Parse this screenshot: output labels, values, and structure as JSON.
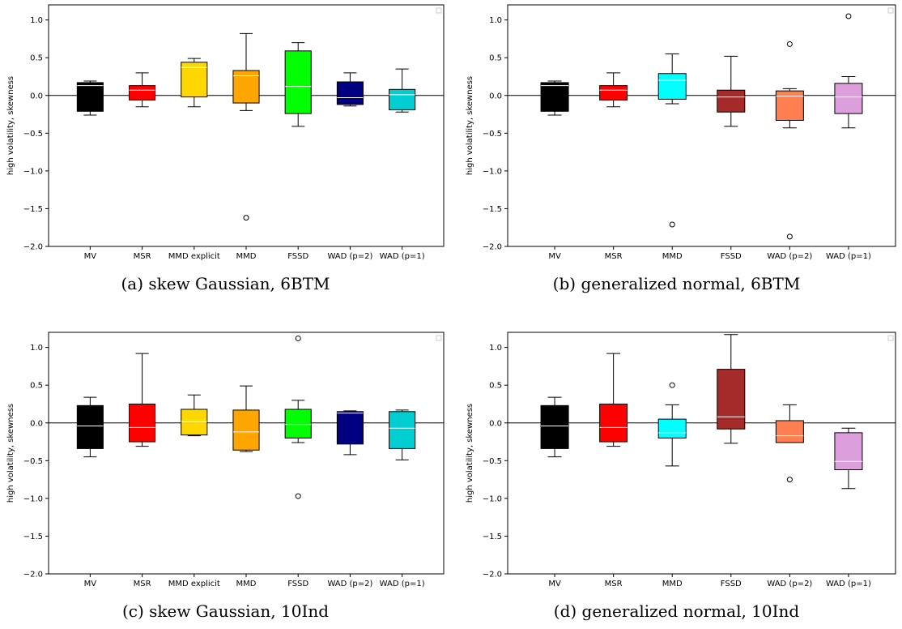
{
  "chart_data": [
    {
      "type": "box",
      "caption": "(a) skew Gaussian, 6BTM",
      "ylabel": "high volatility, skewness",
      "ylim": [
        -2.0,
        1.2
      ],
      "yticks": [
        1.0,
        0.5,
        0.0,
        -0.5,
        -1.0,
        -1.5,
        -2.0
      ],
      "ytick_labels": [
        "1.0",
        "0.5",
        "0.0",
        "−0.5",
        "−1.0",
        "−1.5",
        "−2.0"
      ],
      "zero_line": true,
      "legend": "top-right (empty)",
      "boxes": [
        {
          "label": "MV",
          "color": "#000000",
          "q1": -0.21,
          "median": 0.13,
          "q3": 0.17,
          "whisker_low": -0.26,
          "whisker_high": 0.19,
          "outliers": []
        },
        {
          "label": "MSR",
          "color": "#ff0000",
          "q1": -0.06,
          "median": 0.07,
          "q3": 0.13,
          "whisker_low": -0.15,
          "whisker_high": 0.3,
          "outliers": []
        },
        {
          "label": "MMD explicit",
          "color": "#ffd700",
          "q1": -0.02,
          "median": 0.37,
          "q3": 0.44,
          "whisker_low": -0.15,
          "whisker_high": 0.49,
          "outliers": []
        },
        {
          "label": "MMD",
          "color": "#ffa500",
          "q1": -0.1,
          "median": 0.26,
          "q3": 0.33,
          "whisker_low": -0.2,
          "whisker_high": 0.82,
          "outliers": [
            -1.62
          ]
        },
        {
          "label": "FSSD",
          "color": "#00ff00",
          "q1": -0.24,
          "median": 0.12,
          "q3": 0.59,
          "whisker_low": -0.41,
          "whisker_high": 0.7,
          "outliers": []
        },
        {
          "label": "WAD (p=2)",
          "color": "#000080",
          "q1": -0.12,
          "median": -0.03,
          "q3": 0.18,
          "whisker_low": -0.14,
          "whisker_high": 0.3,
          "outliers": []
        },
        {
          "label": "WAD (p=1)",
          "color": "#00ced1",
          "q1": -0.19,
          "median": 0.01,
          "q3": 0.08,
          "whisker_low": -0.22,
          "whisker_high": 0.35,
          "outliers": []
        }
      ]
    },
    {
      "type": "box",
      "caption": "(b) generalized normal, 6BTM",
      "ylabel": "high volatility, skewness",
      "ylim": [
        -2.0,
        1.2
      ],
      "yticks": [
        1.0,
        0.5,
        0.0,
        -0.5,
        -1.0,
        -1.5,
        -2.0
      ],
      "ytick_labels": [
        "1.0",
        "0.5",
        "0.0",
        "−0.5",
        "−1.0",
        "−1.5",
        "−2.0"
      ],
      "zero_line": true,
      "legend": "top-right (empty)",
      "boxes": [
        {
          "label": "MV",
          "color": "#000000",
          "q1": -0.21,
          "median": 0.13,
          "q3": 0.17,
          "whisker_low": -0.26,
          "whisker_high": 0.19,
          "outliers": []
        },
        {
          "label": "MSR",
          "color": "#ff0000",
          "q1": -0.06,
          "median": 0.07,
          "q3": 0.13,
          "whisker_low": -0.15,
          "whisker_high": 0.3,
          "outliers": []
        },
        {
          "label": "MMD",
          "color": "#00ffff",
          "q1": -0.05,
          "median": 0.2,
          "q3": 0.29,
          "whisker_low": -0.11,
          "whisker_high": 0.55,
          "outliers": [
            -1.71
          ]
        },
        {
          "label": "FSSD",
          "color": "#a52a2a",
          "q1": -0.22,
          "median": -0.02,
          "q3": 0.07,
          "whisker_low": -0.41,
          "whisker_high": 0.52,
          "outliers": []
        },
        {
          "label": "WAD (p=2)",
          "color": "#ff7f50",
          "q1": -0.33,
          "median": -0.01,
          "q3": 0.06,
          "whisker_low": -0.43,
          "whisker_high": 0.09,
          "outliers": [
            0.68,
            -1.87
          ]
        },
        {
          "label": "WAD (p=1)",
          "color": "#dda0dd",
          "q1": -0.24,
          "median": -0.02,
          "q3": 0.16,
          "whisker_low": -0.43,
          "whisker_high": 0.25,
          "outliers": [
            1.05
          ]
        }
      ]
    },
    {
      "type": "box",
      "caption": "(c) skew Gaussian, 10Ind",
      "ylabel": "high volatility, skewness",
      "ylim": [
        -2.0,
        1.2
      ],
      "yticks": [
        1.0,
        0.5,
        0.0,
        -0.5,
        -1.0,
        -1.5,
        -2.0
      ],
      "ytick_labels": [
        "1.0",
        "0.5",
        "0.0",
        "−0.5",
        "−1.0",
        "−1.5",
        "−2.0"
      ],
      "zero_line": true,
      "legend": "top-right (empty)",
      "boxes": [
        {
          "label": "MV",
          "color": "#000000",
          "q1": -0.34,
          "median": -0.04,
          "q3": 0.23,
          "whisker_low": -0.45,
          "whisker_high": 0.34,
          "outliers": []
        },
        {
          "label": "MSR",
          "color": "#ff0000",
          "q1": -0.25,
          "median": -0.06,
          "q3": 0.25,
          "whisker_low": -0.31,
          "whisker_high": 0.92,
          "outliers": []
        },
        {
          "label": "MMD explicit",
          "color": "#ffd700",
          "q1": -0.16,
          "median": 0.02,
          "q3": 0.18,
          "whisker_low": -0.17,
          "whisker_high": 0.37,
          "outliers": []
        },
        {
          "label": "MMD",
          "color": "#ffa500",
          "q1": -0.36,
          "median": -0.12,
          "q3": 0.17,
          "whisker_low": -0.38,
          "whisker_high": 0.49,
          "outliers": []
        },
        {
          "label": "FSSD",
          "color": "#00ff00",
          "q1": -0.2,
          "median": -0.02,
          "q3": 0.18,
          "whisker_low": -0.26,
          "whisker_high": 0.3,
          "outliers": [
            1.12,
            -0.97
          ]
        },
        {
          "label": "WAD (p=2)",
          "color": "#000080",
          "q1": -0.28,
          "median": 0.13,
          "q3": 0.15,
          "whisker_low": -0.42,
          "whisker_high": 0.16,
          "outliers": []
        },
        {
          "label": "WAD (p=1)",
          "color": "#00ced1",
          "q1": -0.34,
          "median": -0.07,
          "q3": 0.15,
          "whisker_low": -0.49,
          "whisker_high": 0.17,
          "outliers": []
        }
      ]
    },
    {
      "type": "box",
      "caption": "(d) generalized normal, 10Ind",
      "ylabel": "high volatility, skewness",
      "ylim": [
        -2.0,
        1.2
      ],
      "yticks": [
        1.0,
        0.5,
        0.0,
        -0.5,
        -1.0,
        -1.5,
        -2.0
      ],
      "ytick_labels": [
        "1.0",
        "0.5",
        "0.0",
        "−0.5",
        "−1.0",
        "−1.5",
        "−2.0"
      ],
      "zero_line": true,
      "legend": "top-right (empty)",
      "boxes": [
        {
          "label": "MV",
          "color": "#000000",
          "q1": -0.34,
          "median": -0.04,
          "q3": 0.23,
          "whisker_low": -0.45,
          "whisker_high": 0.34,
          "outliers": []
        },
        {
          "label": "MSR",
          "color": "#ff0000",
          "q1": -0.25,
          "median": -0.06,
          "q3": 0.25,
          "whisker_low": -0.31,
          "whisker_high": 0.92,
          "outliers": []
        },
        {
          "label": "MMD",
          "color": "#00ffff",
          "q1": -0.2,
          "median": -0.13,
          "q3": 0.05,
          "whisker_low": -0.57,
          "whisker_high": 0.24,
          "outliers": [
            0.5
          ]
        },
        {
          "label": "FSSD",
          "color": "#a52a2a",
          "q1": -0.08,
          "median": 0.08,
          "q3": 0.71,
          "whisker_low": -0.27,
          "whisker_high": 1.17,
          "outliers": []
        },
        {
          "label": "WAD (p=2)",
          "color": "#ff7f50",
          "q1": -0.26,
          "median": -0.17,
          "q3": 0.03,
          "whisker_low": -0.26,
          "whisker_high": 0.24,
          "outliers": [
            -0.75
          ]
        },
        {
          "label": "WAD (p=1)",
          "color": "#dda0dd",
          "q1": -0.62,
          "median": -0.51,
          "q3": -0.13,
          "whisker_low": -0.87,
          "whisker_high": -0.07,
          "outliers": []
        }
      ]
    }
  ]
}
